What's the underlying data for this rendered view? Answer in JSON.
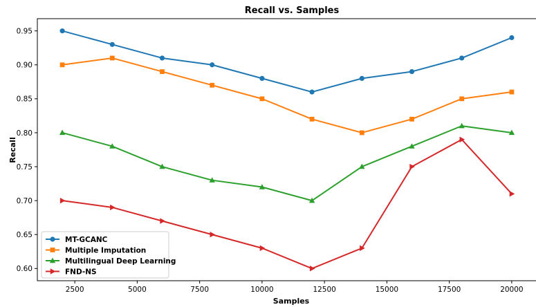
{
  "chart_data": {
    "type": "line",
    "title": "Recall vs. Samples",
    "xlabel": "Samples",
    "ylabel": "Recall",
    "x": [
      2000,
      4000,
      6000,
      8000,
      10000,
      12000,
      14000,
      16000,
      18000,
      20000
    ],
    "xlim": [
      1000,
      21000
    ],
    "ylim": [
      0.582,
      0.968
    ],
    "xticks": [
      2500,
      5000,
      7500,
      10000,
      12500,
      15000,
      17500,
      20000
    ],
    "xtick_labels": [
      "2500",
      "5000",
      "7500",
      "10000",
      "12500",
      "15000",
      "17500",
      "20000"
    ],
    "yticks": [
      0.6,
      0.65,
      0.7,
      0.75,
      0.8,
      0.85,
      0.9,
      0.95
    ],
    "ytick_labels": [
      "0.60",
      "0.65",
      "0.70",
      "0.75",
      "0.80",
      "0.85",
      "0.90",
      "0.95"
    ],
    "grid": false,
    "legend_position": "bottom-left",
    "series": [
      {
        "name": "MT-GCANC",
        "color": "#1f77b4",
        "marker": "circle",
        "values": [
          0.95,
          0.93,
          0.91,
          0.9,
          0.88,
          0.86,
          0.88,
          0.89,
          0.91,
          0.94
        ]
      },
      {
        "name": "Multiple Imputation",
        "color": "#ff7f0e",
        "marker": "square",
        "values": [
          0.9,
          0.91,
          0.89,
          0.87,
          0.85,
          0.82,
          0.8,
          0.82,
          0.85,
          0.86
        ]
      },
      {
        "name": "Multilingual Deep Learning",
        "color": "#2ca02c",
        "marker": "triangle-up",
        "values": [
          0.8,
          0.78,
          0.75,
          0.73,
          0.72,
          0.7,
          0.75,
          0.78,
          0.81,
          0.8
        ]
      },
      {
        "name": "FND-NS",
        "color": "#d62728",
        "marker": "triangle-right",
        "values": [
          0.7,
          0.69,
          0.67,
          0.65,
          0.63,
          0.6,
          0.63,
          0.75,
          0.79,
          0.71
        ]
      }
    ]
  }
}
